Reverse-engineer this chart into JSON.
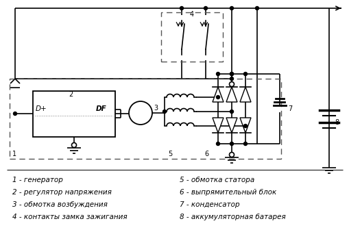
{
  "background_color": "#ffffff",
  "label_1": "1 - генератор",
  "label_2": "2 - регулятор напряжения",
  "label_3": "3 - обмотка возбуждения",
  "label_4": "4 - контакты замка зажигания",
  "label_5": "5 - обмотка статора",
  "label_6": "6 - выпрямительный блок",
  "label_7": "7 - конденсатор",
  "label_8": "8 - аккумуляторная батарея",
  "figsize": [
    5.1,
    3.55
  ],
  "dpi": 100
}
